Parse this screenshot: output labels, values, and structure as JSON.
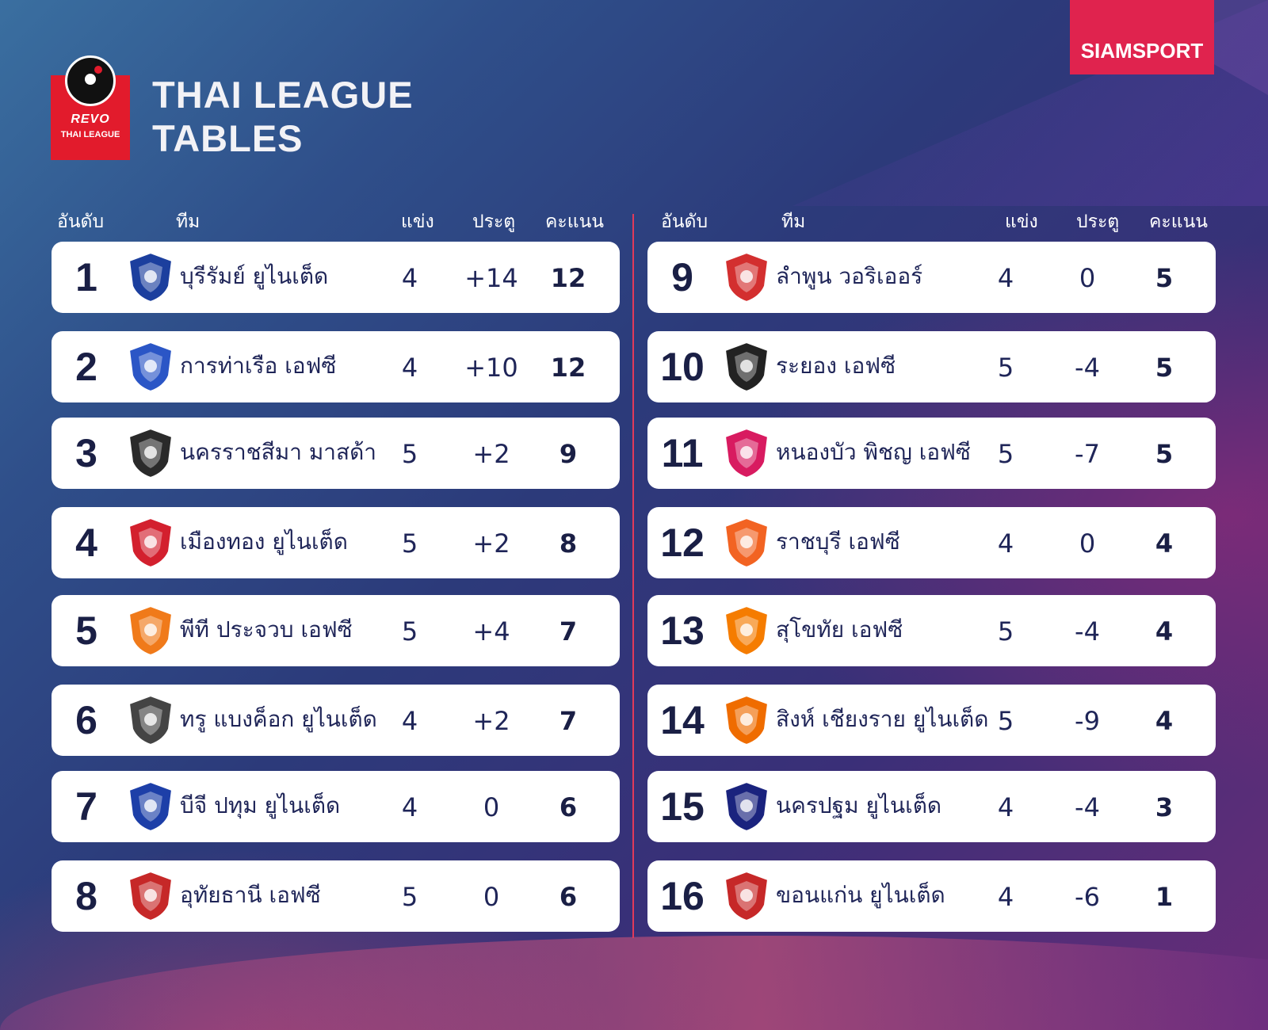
{
  "header": {
    "title_line1": "THAI LEAGUE",
    "title_line2": "TABLES",
    "brand": "SIAMSPORT",
    "logo_text_revo": "REVO",
    "logo_text_league": "THAI LEAGUE"
  },
  "columns": {
    "rank": "อันดับ",
    "team": "ทีม",
    "played": "แข่ง",
    "goal_diff": "ประตู",
    "points": "คะแนน"
  },
  "standings": [
    {
      "rank": "1",
      "team": "บุรีรัมย์ ยูไนเต็ด",
      "played": "4",
      "gd": "+14",
      "pts": "12",
      "crest": "buriram-crest",
      "color": "#1c3f9e"
    },
    {
      "rank": "2",
      "team": "การท่าเรือ เอฟซี",
      "played": "4",
      "gd": "+10",
      "pts": "12",
      "crest": "port-crest",
      "color": "#2b56c6"
    },
    {
      "rank": "3",
      "team": "นครราชสีมา มาสด้า",
      "played": "5",
      "gd": "+2",
      "pts": "9",
      "crest": "korat-crest",
      "color": "#2a2a2a"
    },
    {
      "rank": "4",
      "team": "เมืองทอง ยูไนเต็ด",
      "played": "5",
      "gd": "+2",
      "pts": "8",
      "crest": "muangthong-crest",
      "color": "#d3202e"
    },
    {
      "rank": "5",
      "team": "พีที ประจวบ เอฟซี",
      "played": "5",
      "gd": "+4",
      "pts": "7",
      "crest": "prachuap-crest",
      "color": "#f07a1a"
    },
    {
      "rank": "6",
      "team": "ทรู แบงค็อก ยูไนเต็ด",
      "played": "4",
      "gd": "+2",
      "pts": "7",
      "crest": "bangkok-united-crest",
      "color": "#444444"
    },
    {
      "rank": "7",
      "team": "บีจี ปทุม ยูไนเต็ด",
      "played": "4",
      "gd": "0",
      "pts": "6",
      "crest": "bg-pathum-crest",
      "color": "#1d3fa8"
    },
    {
      "rank": "8",
      "team": "อุทัยธานี เอฟซี",
      "played": "5",
      "gd": "0",
      "pts": "6",
      "crest": "uthaithani-crest",
      "color": "#c62828"
    },
    {
      "rank": "9",
      "team": "ลำพูน วอริเออร์",
      "played": "4",
      "gd": "0",
      "pts": "5",
      "crest": "lamphun-crest",
      "color": "#d32f2f"
    },
    {
      "rank": "10",
      "team": "ระยอง เอฟซี",
      "played": "5",
      "gd": "-4",
      "pts": "5",
      "crest": "rayong-crest",
      "color": "#222222"
    },
    {
      "rank": "11",
      "team": "หนองบัว พิชญ เอฟซี",
      "played": "5",
      "gd": "-7",
      "pts": "5",
      "crest": "nongbua-crest",
      "color": "#d81b60"
    },
    {
      "rank": "12",
      "team": "ราชบุรี เอฟซี",
      "played": "4",
      "gd": "0",
      "pts": "4",
      "crest": "ratchaburi-crest",
      "color": "#f26322"
    },
    {
      "rank": "13",
      "team": "สุโขทัย เอฟซี",
      "played": "5",
      "gd": "-4",
      "pts": "4",
      "crest": "sukhothai-crest",
      "color": "#f57c00"
    },
    {
      "rank": "14",
      "team": "สิงห์ เชียงราย ยูไนเต็ด",
      "played": "5",
      "gd": "-9",
      "pts": "4",
      "crest": "chiangrai-crest",
      "color": "#ef6c00"
    },
    {
      "rank": "15",
      "team": "นครปฐม ยูไนเต็ด",
      "played": "4",
      "gd": "-4",
      "pts": "3",
      "crest": "nakhonpathom-crest",
      "color": "#1a237e"
    },
    {
      "rank": "16",
      "team": "ขอนแก่น ยูไนเต็ด",
      "played": "4",
      "gd": "-6",
      "pts": "1",
      "crest": "khonkaen-crest",
      "color": "#c62828"
    }
  ]
}
